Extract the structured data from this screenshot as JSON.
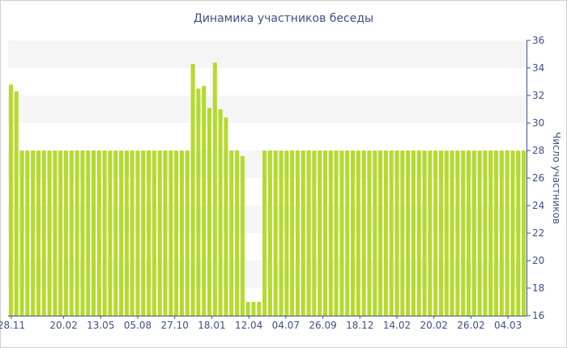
{
  "chart_data": {
    "type": "bar",
    "title": "Динамика участников беседы",
    "xlabel": "",
    "ylabel": "Число участников",
    "ylim": [
      16,
      36
    ],
    "y_ticks": [
      16,
      18,
      20,
      22,
      24,
      26,
      28,
      30,
      32,
      34,
      36
    ],
    "x_tick_labels": [
      "28.11",
      "20.02",
      "13.05",
      "05.08",
      "27.10",
      "18.01",
      "12.04",
      "04.07",
      "26.09",
      "18.12",
      "14.02",
      "20.02",
      "26.02",
      "04.03"
    ],
    "y_axis_position": "right",
    "grid": "alternating horizontal bands",
    "values": [
      32.8,
      32.3,
      28,
      28,
      28,
      28,
      28,
      28,
      28,
      28,
      28,
      28,
      28,
      28,
      28,
      28,
      28,
      28,
      28,
      28,
      28,
      28,
      28,
      28,
      28,
      28,
      28,
      28,
      28,
      28,
      28,
      28,
      28,
      34.3,
      32.5,
      32.7,
      31.1,
      34.4,
      31.0,
      30.4,
      28,
      28,
      27.6,
      17,
      17,
      17,
      28,
      28,
      28,
      28,
      28,
      28,
      28,
      28,
      28,
      28,
      28,
      28,
      28,
      28,
      28,
      28,
      28,
      28,
      28,
      28,
      28,
      28,
      28,
      28,
      28,
      28,
      28,
      28,
      28,
      28,
      28,
      28,
      28,
      28,
      28,
      28,
      28,
      28,
      28,
      28,
      28,
      28,
      28,
      28,
      28,
      28,
      28,
      28
    ],
    "colors": {
      "bar": "#b5da2d",
      "band": "#f5f5f5",
      "text": "#3e4f86",
      "axis": "#3e4f86"
    }
  }
}
